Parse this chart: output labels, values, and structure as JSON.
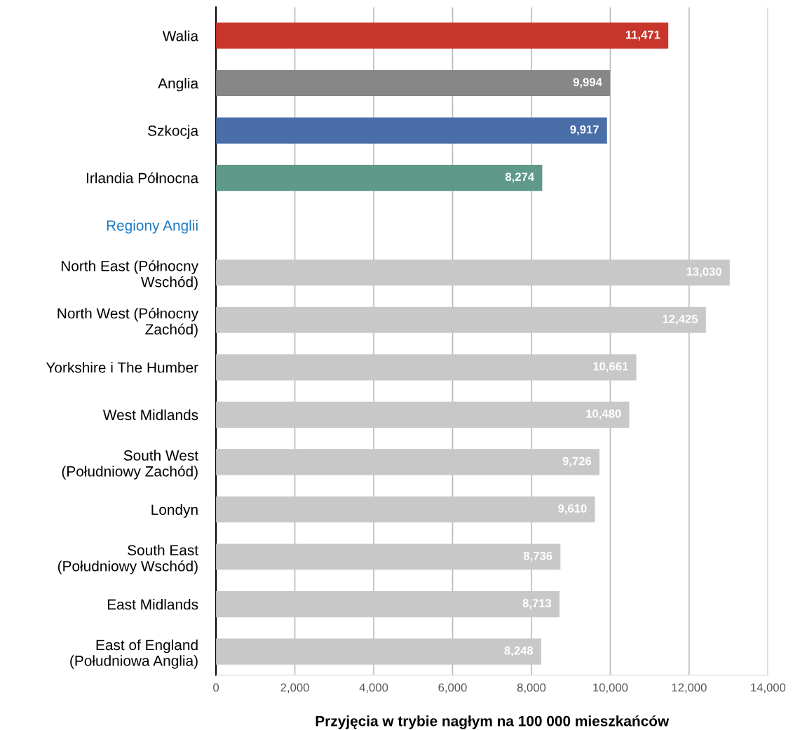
{
  "chart_data": {
    "type": "bar",
    "orientation": "horizontal",
    "xlabel": "Przyjęcia w trybie nagłym na 100 000 mieszkańców",
    "categories": [
      "Walia",
      "Anglia",
      "Szkocja",
      "Irlandia Północna",
      "Regiony Anglii",
      "North East (Północny\nWschód)",
      "North West (Północny\nZachód)",
      "Yorkshire i The Humber",
      "West Midlands",
      "South West\n(Południowy Zachód)",
      "Londyn",
      "South East\n(Południowy Wschód)",
      "East Midlands",
      "East of England\n(Południowa Anglia)"
    ],
    "values": [
      11471,
      9994,
      9917,
      8274,
      null,
      13030,
      12425,
      10661,
      10480,
      9726,
      9610,
      8736,
      8713,
      8248
    ],
    "value_labels": [
      "11,471",
      "9,994",
      "9,917",
      "8,274",
      null,
      "13,030",
      "12,425",
      "10,661",
      "10,480",
      "9,726",
      "9,610",
      "8,736",
      "8,713",
      "8,248"
    ],
    "colors": [
      "#c8352a",
      "#878787",
      "#4a6ea8",
      "#5e998a",
      null,
      "#c8c8c8",
      "#c8c8c8",
      "#c8c8c8",
      "#c8c8c8",
      "#c8c8c8",
      "#c8c8c8",
      "#c8c8c8",
      "#c8c8c8",
      "#c8c8c8"
    ],
    "xlim": [
      0,
      14000
    ],
    "xticks": [
      0,
      {
        "value": 2000,
        "label": "2,000"
      },
      {
        "value": 4000,
        "label": "4,000"
      },
      {
        "value": 6000,
        "label": "6,000"
      },
      {
        "value": 8000,
        "label": "8,000"
      },
      {
        "value": 10000,
        "label": "10,000"
      },
      {
        "value": 12000,
        "label": "12,000"
      },
      {
        "value": 14000,
        "label": "14,000"
      }
    ],
    "grid": "x",
    "legend": false
  }
}
